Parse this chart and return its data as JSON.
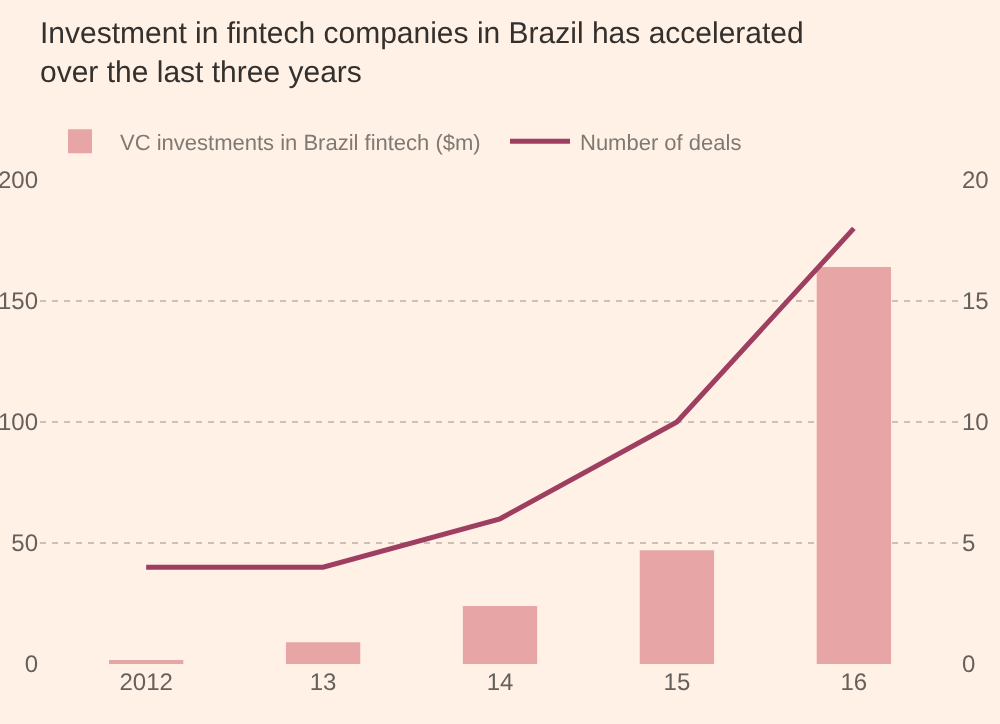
{
  "chart_data": {
    "type": "bar",
    "title": "Investment in fintech companies in Brazil has accelerated\nover the last three years",
    "categories": [
      "2012",
      "13",
      "14",
      "15",
      "16"
    ],
    "series": [
      {
        "name": "VC investments in Brazil fintech ($m)",
        "color": "#e8a5a5",
        "values": [
          1,
          9,
          24,
          47,
          164
        ]
      },
      {
        "name": "Number of deals",
        "type": "line",
        "axis": "y2",
        "color": "#9e3f62",
        "values": [
          4,
          4,
          6,
          10,
          18
        ]
      }
    ],
    "ylim": [
      0,
      200
    ],
    "yticks": [
      0,
      50,
      100,
      150,
      200
    ],
    "y2lim": [
      0,
      20
    ],
    "y2ticks": [
      0,
      5,
      10,
      15,
      20
    ],
    "grid": "y",
    "legend": "top",
    "marker": "none",
    "line_style": "solid"
  }
}
